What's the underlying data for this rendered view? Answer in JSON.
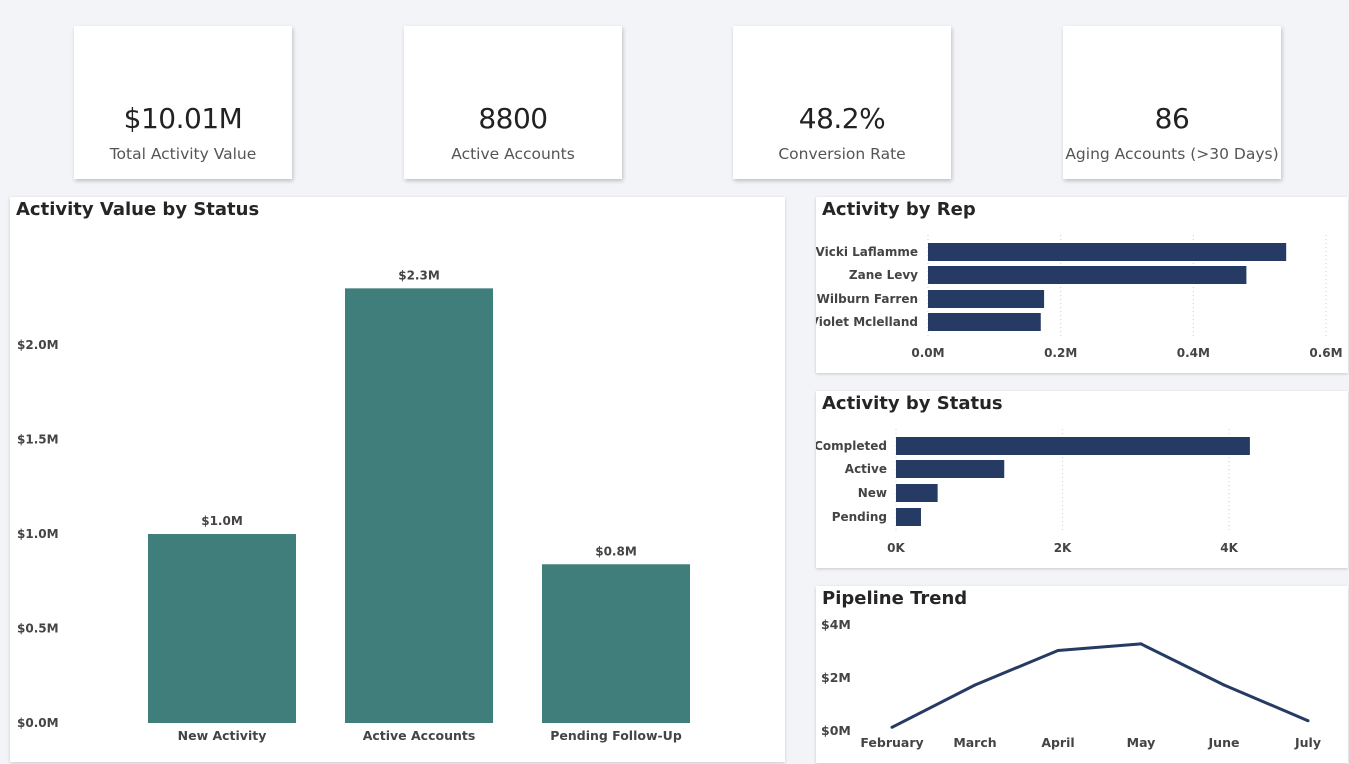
{
  "kpis": [
    {
      "value": "$10.01M",
      "label": "Total Activity Value"
    },
    {
      "value": "8800",
      "label": "Active Accounts"
    },
    {
      "value": "48.2%",
      "label": "Conversion Rate"
    },
    {
      "value": "86",
      "label": "Aging Accounts (>30 Days)"
    }
  ],
  "colors": {
    "teal": "#407e7b",
    "navy": "#263b63"
  },
  "chart_data": [
    {
      "type": "bar",
      "title": "Activity Value by Status",
      "categories": [
        "New Activity",
        "Active Accounts",
        "Pending Follow-Up"
      ],
      "values": [
        1.0,
        2.3,
        0.84
      ],
      "data_labels": [
        "$1.0M",
        "$2.3M",
        "$0.8M"
      ],
      "yticks": [
        "$0.0M",
        "$0.5M",
        "$1.0M",
        "$1.5M",
        "$2.0M"
      ],
      "ylim": [
        0,
        2.45
      ],
      "grid": false
    },
    {
      "type": "bar",
      "orientation": "horizontal",
      "title": "Activity by Rep",
      "categories": [
        "Vicki Laflamme",
        "Zane Levy",
        "Wilburn Farren",
        "Violet Mclelland"
      ],
      "values": [
        0.54,
        0.48,
        0.175,
        0.17
      ],
      "xticks": [
        "0.0M",
        "0.2M",
        "0.4M",
        "0.6M"
      ],
      "xlim": [
        0,
        0.6
      ],
      "grid": true
    },
    {
      "type": "bar",
      "orientation": "horizontal",
      "title": "Activity by Status",
      "categories": [
        "Completed",
        "Active",
        "New",
        "Pending"
      ],
      "values": [
        4250,
        1300,
        500,
        300
      ],
      "xticks": [
        "0K",
        "2K",
        "4K"
      ],
      "xlim": [
        0,
        5200
      ],
      "grid": true
    },
    {
      "type": "line",
      "title": "Pipeline Trend",
      "x": [
        "February",
        "March",
        "April",
        "May",
        "June",
        "July"
      ],
      "values": [
        0.1,
        1.7,
        3.0,
        3.25,
        1.7,
        0.35
      ],
      "yticks": [
        "$0M",
        "$2M",
        "$4M"
      ],
      "ylim": [
        0,
        4
      ],
      "grid": false
    }
  ]
}
